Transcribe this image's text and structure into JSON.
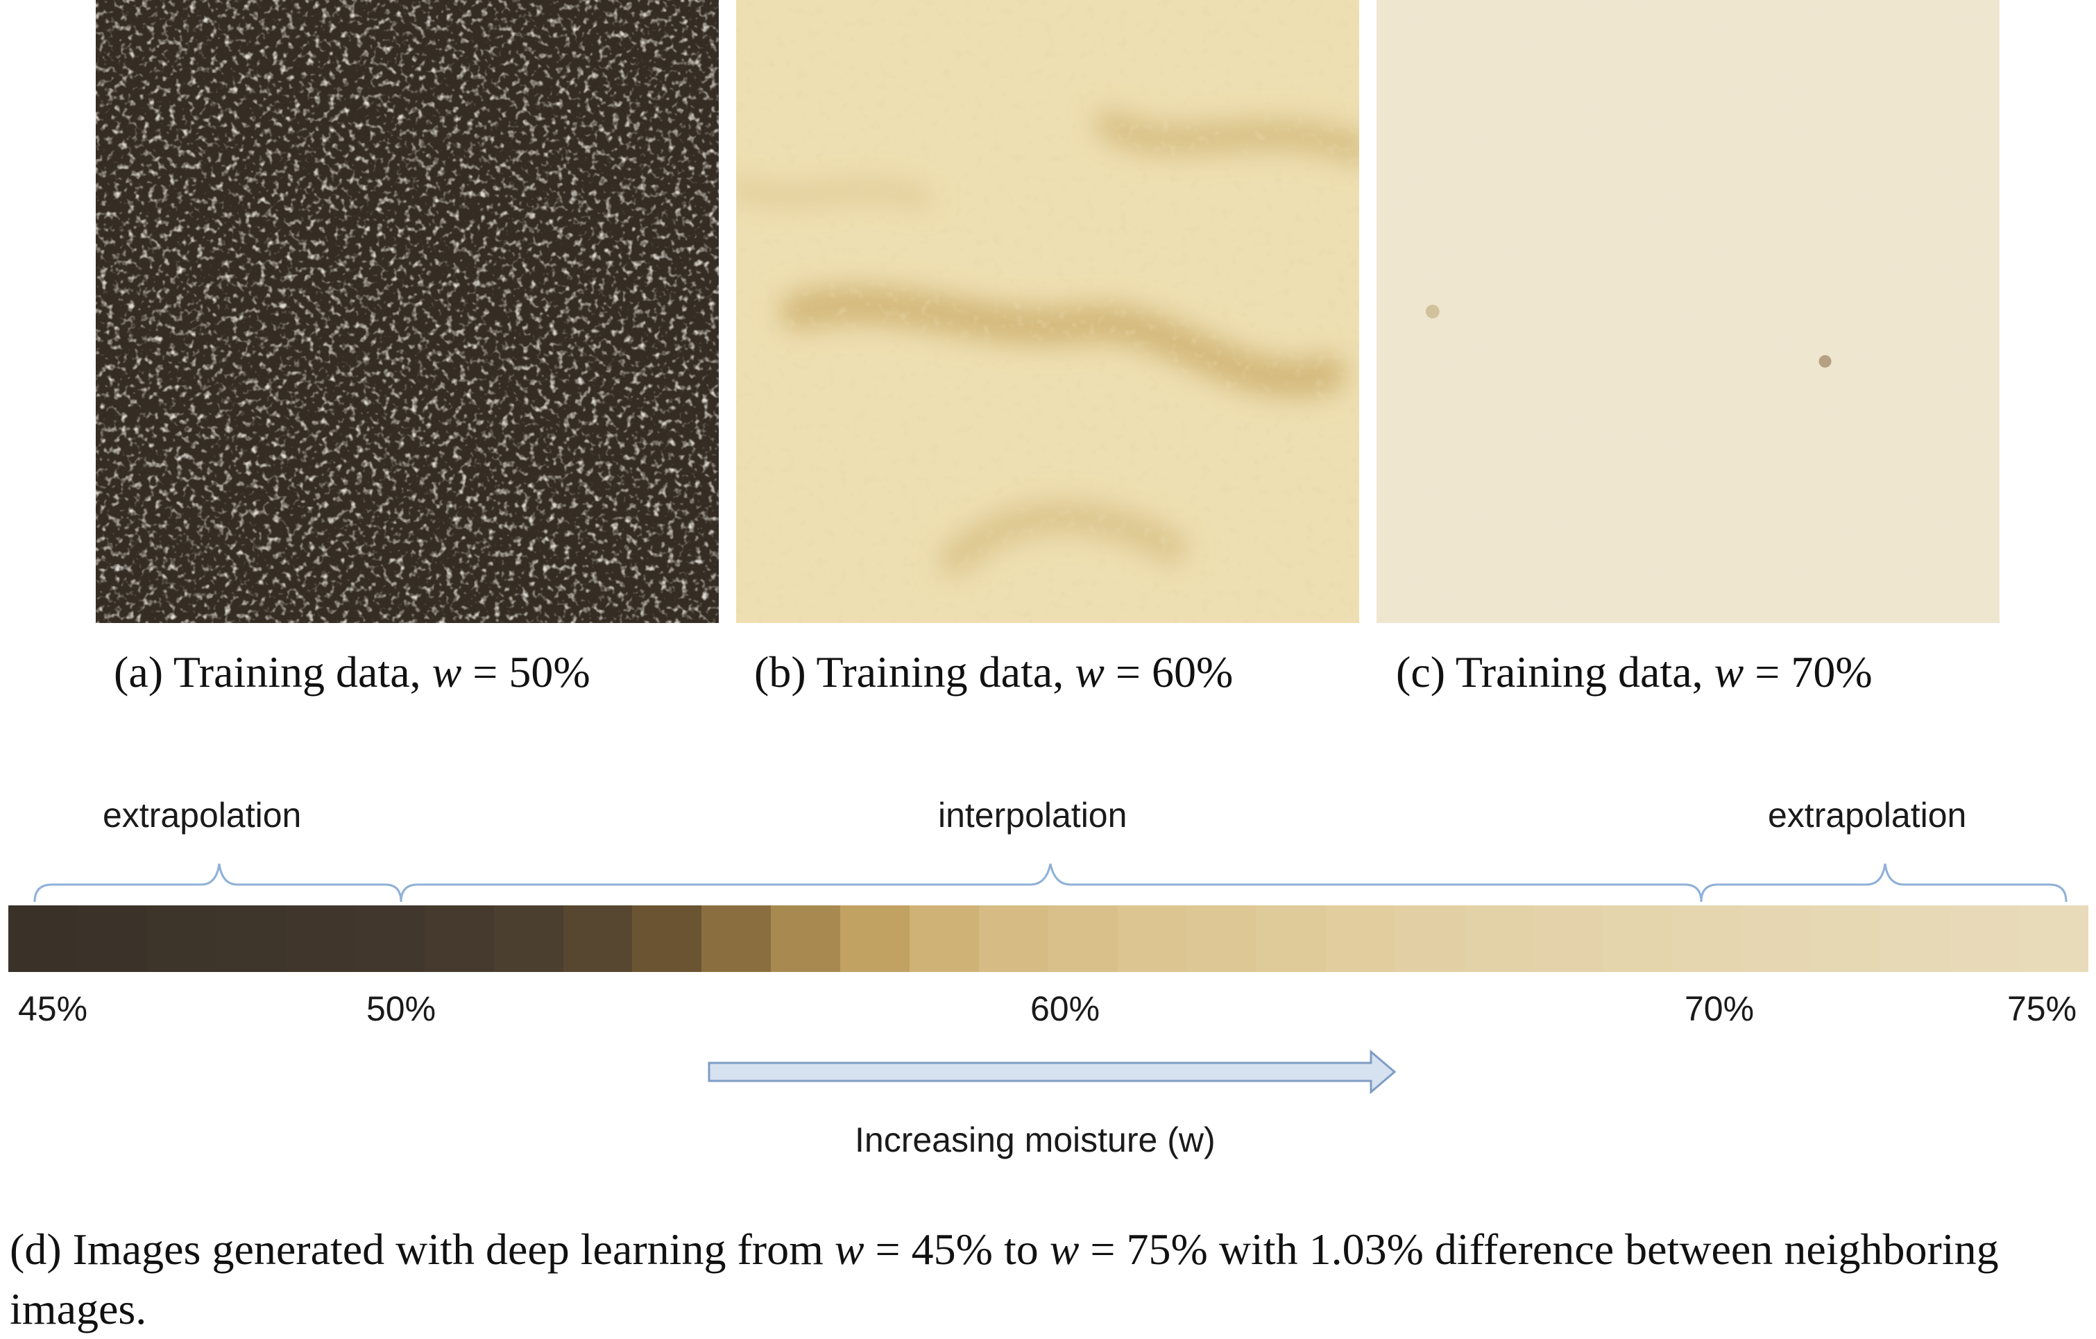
{
  "panels": [
    {
      "id": "a",
      "label": "(a)",
      "text": "Training data,",
      "var": "w",
      "eq": "=",
      "value": "50%",
      "color_base": "#3b3329",
      "color_hi": "#b7b0a4"
    },
    {
      "id": "b",
      "label": "(b)",
      "text": "Training data,",
      "var": "w",
      "eq": "=",
      "value": "60%",
      "color_base": "#eedfb2",
      "color_hi": "#c5a35b"
    },
    {
      "id": "c",
      "label": "(c)",
      "text": "Training data,",
      "var": "w",
      "eq": "=",
      "value": "70%",
      "color_base": "#eee6cf",
      "color_hi": "#dccfa8"
    }
  ],
  "diagram": {
    "left_label": "extrapolation",
    "center_label": "interpolation",
    "right_label": "extrapolation",
    "ticks": [
      "45%",
      "50%",
      "60%",
      "70%",
      "75%"
    ],
    "arrow_label": "Increasing moisture (w)",
    "arrow_color": "#d7e2f1",
    "arrow_stroke": "#7f9dc4",
    "strip_colors": [
      "#3a3128",
      "#3b3229",
      "#3d342a",
      "#3e352b",
      "#40362c",
      "#41372d",
      "#453a2d",
      "#4b3f2f",
      "#574630",
      "#6a5432",
      "#8a6e3f",
      "#a88a50",
      "#c2a263",
      "#cfb276",
      "#d6bc84",
      "#d9c08a",
      "#dcc590",
      "#ddc794",
      "#dfca99",
      "#e1cd9e",
      "#e2cfa3",
      "#e3d1a7",
      "#e4d3aa",
      "#e5d5ad",
      "#e5d6b0",
      "#e6d7b2",
      "#e7d8b4",
      "#e7d9b6",
      "#e8dab8",
      "#e8dbb9"
    ]
  },
  "caption_d": {
    "prefix": "(d) Images generated with deep learning from",
    "var1": "w",
    "eq1": "=",
    "v1": "45%",
    "to": "to",
    "var2": "w",
    "eq2": "=",
    "v2": "75%",
    "suffix": "with 1.03% difference between neighboring images."
  }
}
